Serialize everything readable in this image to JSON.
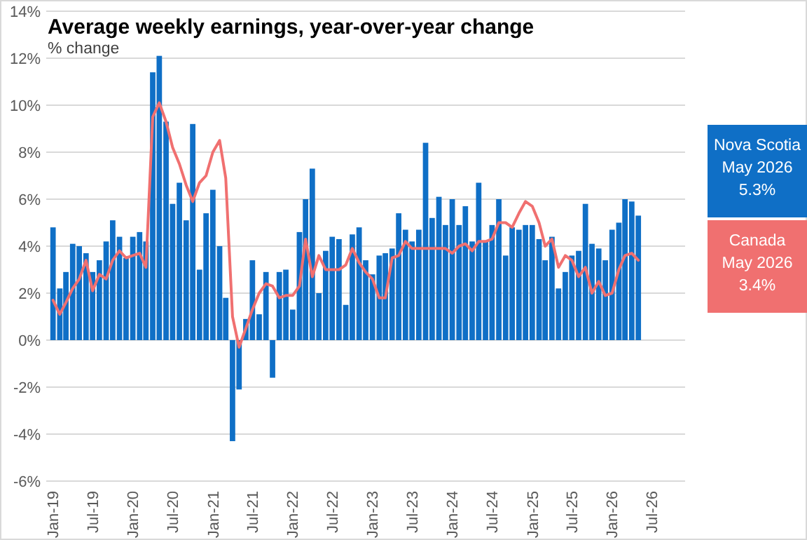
{
  "chart_data": {
    "type": "bar",
    "title": "Average weekly earnings, year-over-year change",
    "subtitle": "% change",
    "x": [
      "2019-01",
      "2019-02",
      "2019-03",
      "2019-04",
      "2019-05",
      "2019-06",
      "2019-07",
      "2019-08",
      "2019-09",
      "2019-10",
      "2019-11",
      "2019-12",
      "2020-01",
      "2020-02",
      "2020-03",
      "2020-04",
      "2020-05",
      "2020-06",
      "2020-07",
      "2020-08",
      "2020-09",
      "2020-10",
      "2020-11",
      "2020-12",
      "2021-01",
      "2021-02",
      "2021-03",
      "2021-04",
      "2021-05",
      "2021-06",
      "2021-07",
      "2021-08",
      "2021-09",
      "2021-10",
      "2021-11",
      "2021-12",
      "2022-01",
      "2022-02",
      "2022-03",
      "2022-04",
      "2022-05",
      "2022-06",
      "2022-07",
      "2022-08",
      "2022-09",
      "2022-10",
      "2022-11",
      "2022-12",
      "2023-01",
      "2023-02",
      "2023-03",
      "2023-04",
      "2023-05",
      "2023-06",
      "2023-07",
      "2023-08",
      "2023-09",
      "2023-10",
      "2023-11",
      "2023-12",
      "2024-01",
      "2024-02",
      "2024-03",
      "2024-04",
      "2024-05",
      "2024-06",
      "2024-07",
      "2024-08",
      "2024-09",
      "2024-10",
      "2024-11",
      "2024-12",
      "2025-01",
      "2025-02",
      "2025-03",
      "2025-04",
      "2025-05",
      "2025-06",
      "2025-07",
      "2025-08",
      "2025-09",
      "2025-10",
      "2025-11",
      "2025-12",
      "2026-01",
      "2026-02",
      "2026-03",
      "2026-04",
      "2026-05"
    ],
    "series": [
      {
        "name": "Nova Scotia",
        "color": "#0f6fc6",
        "values": [
          4.8,
          2.2,
          2.9,
          4.1,
          4.0,
          3.7,
          2.9,
          3.4,
          4.2,
          5.1,
          4.4,
          3.5,
          4.4,
          4.6,
          4.2,
          11.4,
          12.1,
          9.3,
          5.8,
          6.7,
          5.1,
          9.2,
          3.0,
          5.4,
          6.4,
          4.0,
          1.8,
          -4.3,
          -2.1,
          0.9,
          3.4,
          1.1,
          2.9,
          -1.6,
          2.9,
          3.0,
          1.3,
          4.6,
          6.0,
          7.3,
          2.0,
          3.8,
          4.4,
          4.3,
          1.5,
          4.5,
          4.8,
          3.4,
          2.8,
          3.6,
          3.7,
          3.9,
          5.4,
          4.7,
          4.2,
          4.7,
          8.4,
          5.2,
          6.1,
          4.9,
          6.0,
          4.9,
          5.7,
          4.2,
          6.7,
          4.2,
          4.9,
          6.0,
          3.6,
          4.8,
          4.7,
          4.9,
          4.9,
          4.3,
          3.4,
          4.4,
          2.2,
          2.9,
          3.6,
          3.8,
          5.8,
          4.1,
          3.9,
          3.4,
          4.7,
          5.0,
          6.0,
          5.9,
          5.3
        ]
      },
      {
        "name": "Canada",
        "type": "line",
        "color": "#f07070",
        "values": [
          1.7,
          1.1,
          1.6,
          2.2,
          2.6,
          3.4,
          2.1,
          2.8,
          2.6,
          3.4,
          3.8,
          3.5,
          3.6,
          3.7,
          3.1,
          9.5,
          10.1,
          9.3,
          8.2,
          7.5,
          6.6,
          5.9,
          6.7,
          7.0,
          8.0,
          8.5,
          6.9,
          1.0,
          -0.3,
          0.5,
          1.3,
          2.0,
          2.4,
          2.3,
          1.8,
          1.9,
          1.9,
          2.3,
          4.3,
          2.7,
          3.6,
          3.0,
          3.0,
          3.0,
          3.2,
          3.9,
          3.3,
          2.9,
          2.6,
          1.8,
          1.8,
          3.5,
          3.6,
          4.2,
          3.9,
          3.9,
          3.9,
          3.9,
          3.9,
          3.9,
          3.7,
          4.0,
          4.1,
          3.8,
          4.2,
          4.2,
          4.3,
          5.0,
          5.0,
          4.8,
          5.4,
          5.9,
          5.7,
          5.0,
          4.0,
          4.3,
          3.1,
          3.6,
          3.4,
          2.7,
          3.1,
          2.0,
          2.5,
          1.9,
          2.0,
          3.0,
          3.6,
          3.7,
          3.4
        ]
      }
    ],
    "xlim": [
      "2018-12",
      "2026-12"
    ],
    "xticks": [
      {
        "value": "2019-01",
        "label": "Jan-19"
      },
      {
        "value": "2019-07",
        "label": "Jul-19"
      },
      {
        "value": "2020-01",
        "label": "Jan-20"
      },
      {
        "value": "2020-07",
        "label": "Jul-20"
      },
      {
        "value": "2021-01",
        "label": "Jan-21"
      },
      {
        "value": "2021-07",
        "label": "Jul-21"
      },
      {
        "value": "2022-01",
        "label": "Jan-22"
      },
      {
        "value": "2022-07",
        "label": "Jul-22"
      },
      {
        "value": "2023-01",
        "label": "Jan-23"
      },
      {
        "value": "2023-07",
        "label": "Jul-23"
      },
      {
        "value": "2024-01",
        "label": "Jan-24"
      },
      {
        "value": "2024-07",
        "label": "Jul-24"
      },
      {
        "value": "2025-01",
        "label": "Jan-25"
      },
      {
        "value": "2025-07",
        "label": "Jul-25"
      },
      {
        "value": "2026-01",
        "label": "Jan-26"
      },
      {
        "value": "2026-07",
        "label": "Jul-26"
      }
    ],
    "ylim": [
      -6,
      14
    ],
    "yticks": [
      {
        "value": -6,
        "label": "-6%"
      },
      {
        "value": -4,
        "label": "-4%"
      },
      {
        "value": -2,
        "label": "-2%"
      },
      {
        "value": 0,
        "label": "0%"
      },
      {
        "value": 2,
        "label": "2%"
      },
      {
        "value": 4,
        "label": "4%"
      },
      {
        "value": 6,
        "label": "6%"
      },
      {
        "value": 8,
        "label": "8%"
      },
      {
        "value": 10,
        "label": "10%"
      },
      {
        "value": 12,
        "label": "12%"
      },
      {
        "value": 14,
        "label": "14%"
      }
    ],
    "grid": "y",
    "legend": "right",
    "annotations": [
      "May 2026",
      "5.3%",
      "May 2026",
      "3.4%"
    ]
  }
}
